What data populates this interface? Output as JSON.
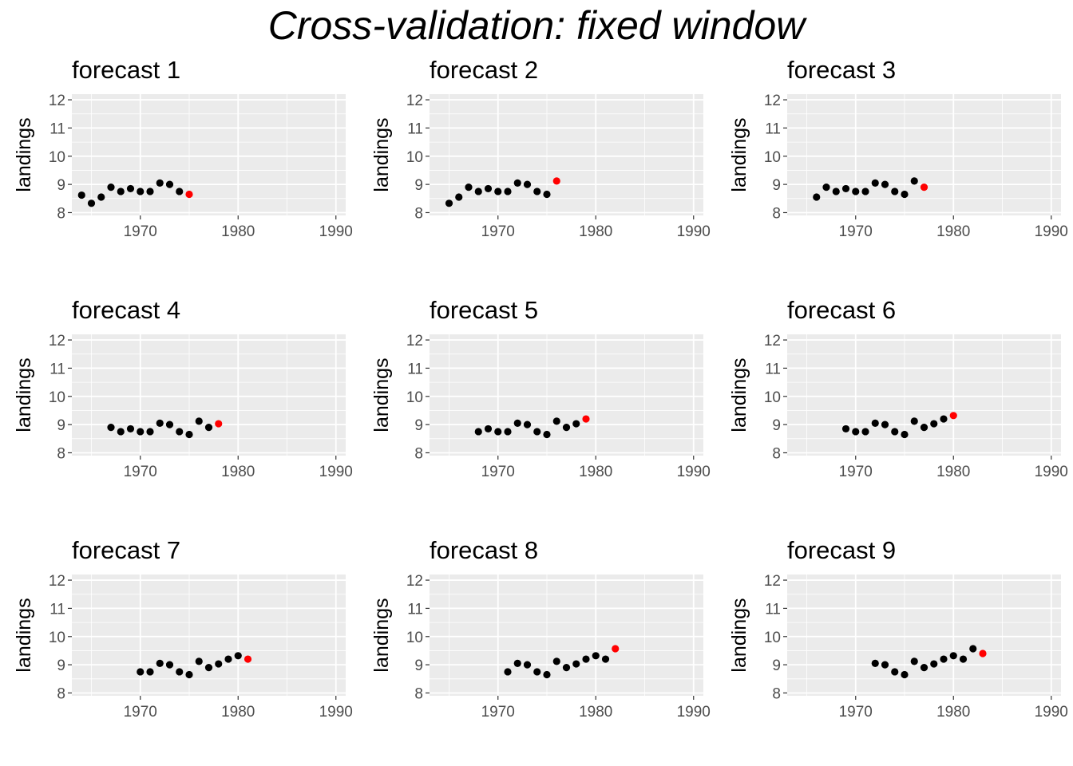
{
  "figure": {
    "title": "Cross-validation: fixed window"
  },
  "chart_data": {
    "type": "scatter",
    "layout": "3x3 facet grid",
    "panel_background": "#EBEBEB",
    "gridlines": true,
    "ylabel": "landings",
    "xlim": [
      1963,
      1991
    ],
    "ylim": [
      7.9,
      12.2
    ],
    "x_ticks": [
      1970,
      1980,
      1990
    ],
    "x_tick_labels": [
      "1970",
      "1980",
      "1990"
    ],
    "y_ticks": [
      8,
      9,
      10,
      11,
      12
    ],
    "y_tick_labels": [
      "8",
      "9",
      "10",
      "11",
      "12"
    ],
    "train_color": "#000000",
    "test_color": "#FF0000",
    "series": [
      {
        "year": 1964,
        "value": 8.62
      },
      {
        "year": 1965,
        "value": 8.33
      },
      {
        "year": 1966,
        "value": 8.55
      },
      {
        "year": 1967,
        "value": 8.9
      },
      {
        "year": 1968,
        "value": 8.75
      },
      {
        "year": 1969,
        "value": 8.85
      },
      {
        "year": 1970,
        "value": 8.75
      },
      {
        "year": 1971,
        "value": 8.75
      },
      {
        "year": 1972,
        "value": 9.05
      },
      {
        "year": 1973,
        "value": 9.0
      },
      {
        "year": 1974,
        "value": 8.75
      },
      {
        "year": 1975,
        "value": 8.65
      },
      {
        "year": 1976,
        "value": 9.12
      },
      {
        "year": 1977,
        "value": 8.9
      },
      {
        "year": 1978,
        "value": 9.03
      },
      {
        "year": 1979,
        "value": 9.2
      },
      {
        "year": 1980,
        "value": 9.32
      },
      {
        "year": 1981,
        "value": 9.2
      },
      {
        "year": 1982,
        "value": 9.57
      },
      {
        "year": 1983,
        "value": 9.4
      }
    ],
    "panels": [
      {
        "title": "forecast 1",
        "train_years": [
          1964,
          1974
        ],
        "test_year": 1975
      },
      {
        "title": "forecast 2",
        "train_years": [
          1965,
          1975
        ],
        "test_year": 1976
      },
      {
        "title": "forecast 3",
        "train_years": [
          1966,
          1976
        ],
        "test_year": 1977
      },
      {
        "title": "forecast 4",
        "train_years": [
          1967,
          1977
        ],
        "test_year": 1978
      },
      {
        "title": "forecast 5",
        "train_years": [
          1968,
          1978
        ],
        "test_year": 1979
      },
      {
        "title": "forecast 6",
        "train_years": [
          1969,
          1979
        ],
        "test_year": 1980
      },
      {
        "title": "forecast 7",
        "train_years": [
          1970,
          1980
        ],
        "test_year": 1981
      },
      {
        "title": "forecast 8",
        "train_years": [
          1971,
          1981
        ],
        "test_year": 1982
      },
      {
        "title": "forecast 9",
        "train_years": [
          1972,
          1982
        ],
        "test_year": 1983
      }
    ]
  }
}
